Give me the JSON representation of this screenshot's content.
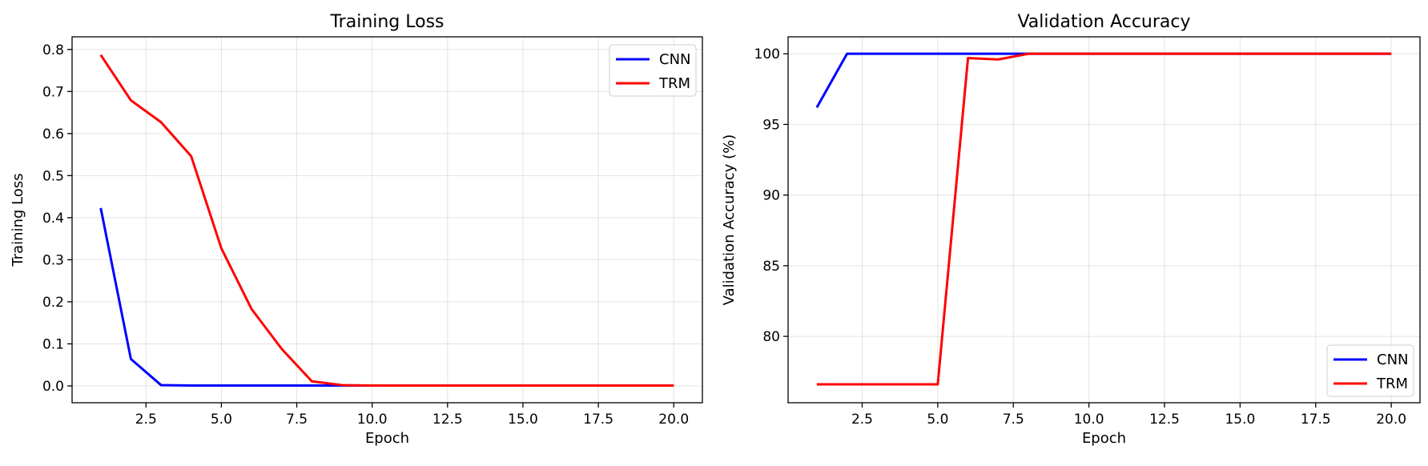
{
  "chart_data": [
    {
      "type": "line",
      "title": "Training Loss",
      "xlabel": "Epoch",
      "ylabel": "Training Loss",
      "xlim": [
        0.05,
        20.95
      ],
      "ylim": [
        -0.04,
        0.83
      ],
      "xticks": [
        2.5,
        5.0,
        7.5,
        10.0,
        12.5,
        15.0,
        17.5,
        20.0
      ],
      "xtick_labels": [
        "2.5",
        "5.0",
        "7.5",
        "10.0",
        "12.5",
        "15.0",
        "17.5",
        "20.0"
      ],
      "yticks": [
        0.0,
        0.1,
        0.2,
        0.3,
        0.4,
        0.5,
        0.6,
        0.7,
        0.8
      ],
      "ytick_labels": [
        "0.0",
        "0.1",
        "0.2",
        "0.3",
        "0.4",
        "0.5",
        "0.6",
        "0.7",
        "0.8"
      ],
      "grid": true,
      "legend_position": "upper-right",
      "x": [
        1,
        2,
        3,
        4,
        5,
        6,
        7,
        8,
        9,
        10,
        11,
        12,
        13,
        14,
        15,
        16,
        17,
        18,
        19,
        20
      ],
      "series": [
        {
          "name": "CNN",
          "color": "#0000ff",
          "values": [
            0.423,
            0.064,
            0.002,
            0.001,
            0.001,
            0.001,
            0.001,
            0.001,
            0.001,
            0.001,
            0.001,
            0.001,
            0.001,
            0.001,
            0.001,
            0.001,
            0.001,
            0.001,
            0.001,
            0.001
          ]
        },
        {
          "name": "TRM",
          "color": "#ff0000",
          "values": [
            0.787,
            0.679,
            0.627,
            0.546,
            0.327,
            0.183,
            0.088,
            0.011,
            0.002,
            0.001,
            0.001,
            0.001,
            0.001,
            0.001,
            0.001,
            0.001,
            0.001,
            0.001,
            0.001,
            0.001
          ]
        }
      ]
    },
    {
      "type": "line",
      "title": "Validation Accuracy",
      "xlabel": "Epoch",
      "ylabel": "Validation Accuracy (%)",
      "xlim": [
        0.05,
        20.95
      ],
      "ylim": [
        75.3,
        101.2
      ],
      "xticks": [
        2.5,
        5.0,
        7.5,
        10.0,
        12.5,
        15.0,
        17.5,
        20.0
      ],
      "xtick_labels": [
        "2.5",
        "5.0",
        "7.5",
        "10.0",
        "12.5",
        "15.0",
        "17.5",
        "20.0"
      ],
      "yticks": [
        80,
        85,
        90,
        95,
        100
      ],
      "ytick_labels": [
        "80",
        "85",
        "90",
        "95",
        "100"
      ],
      "grid": true,
      "legend_position": "lower-right",
      "x": [
        1,
        2,
        3,
        4,
        5,
        6,
        7,
        8,
        9,
        10,
        11,
        12,
        13,
        14,
        15,
        16,
        17,
        18,
        19,
        20
      ],
      "series": [
        {
          "name": "CNN",
          "color": "#0000ff",
          "values": [
            96.2,
            100,
            100,
            100,
            100,
            100,
            100,
            100,
            100,
            100,
            100,
            100,
            100,
            100,
            100,
            100,
            100,
            100,
            100,
            100
          ]
        },
        {
          "name": "TRM",
          "color": "#ff0000",
          "values": [
            76.6,
            76.6,
            76.6,
            76.6,
            76.6,
            99.7,
            99.6,
            100,
            100,
            100,
            100,
            100,
            100,
            100,
            100,
            100,
            100,
            100,
            100,
            100
          ]
        }
      ]
    }
  ]
}
